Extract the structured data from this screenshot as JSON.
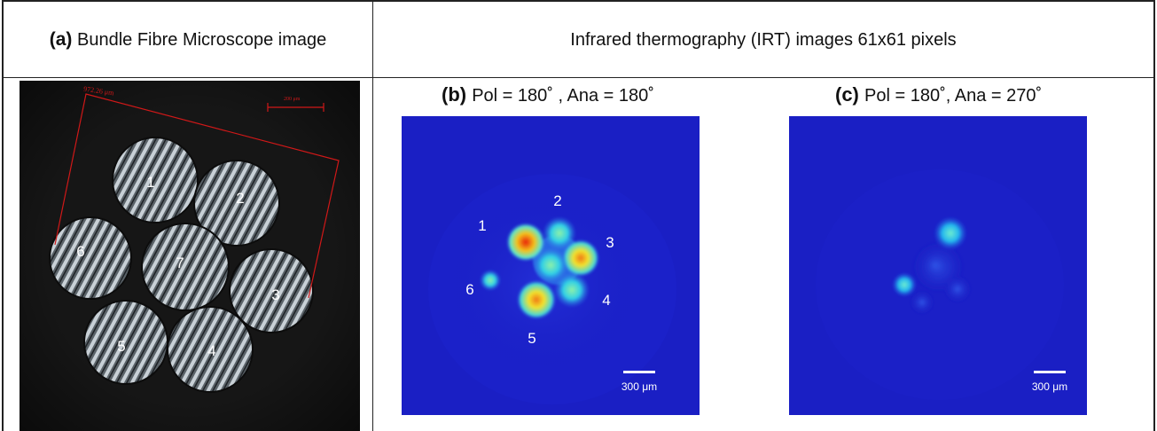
{
  "header": {
    "panel_a_tag": "(a)",
    "panel_a_text": "Bundle Fibre Microscope image",
    "irt_title": "Infrared thermography (IRT) images 61x61 pixels"
  },
  "panel_b": {
    "tag": "(b)",
    "caption": "Pol = 180˚ , Ana = 180˚",
    "scale": "300 μm",
    "fibre_labels": [
      "1",
      "2",
      "3",
      "4",
      "5",
      "6"
    ]
  },
  "panel_c": {
    "tag": "(c)",
    "caption": "Pol = 180˚, Ana = 270˚",
    "scale": "300 μm"
  },
  "microscope": {
    "measure": "972.26 μm",
    "scale": "200 μm",
    "fibre_labels": [
      "1",
      "2",
      "3",
      "4",
      "5",
      "6",
      "7"
    ]
  },
  "colors": {
    "irt_background": "#1a1fc4",
    "microscope_bg": "#141414",
    "measure_line": "#d01818"
  }
}
